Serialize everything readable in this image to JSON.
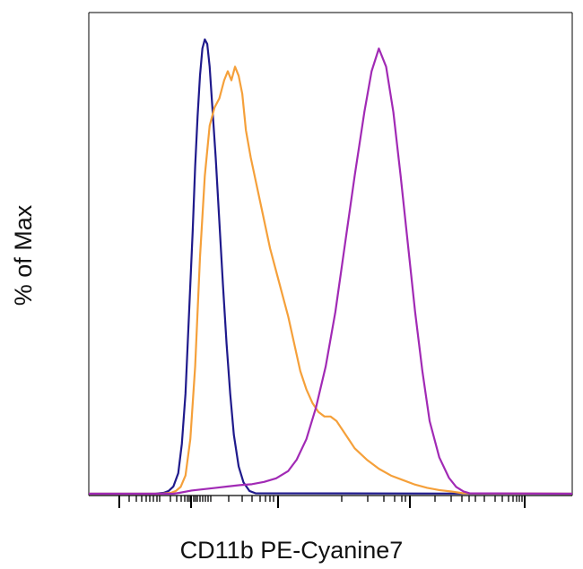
{
  "chart_data": {
    "type": "line",
    "title": "",
    "xlabel": "CD11b PE-Cyanine7",
    "ylabel": "% of Max",
    "xscale": "log",
    "ylim": [
      0,
      100
    ],
    "grid": false,
    "legend": "none",
    "series": [
      {
        "color": "#1f1a8c",
        "x": [
          0.0,
          0.55,
          0.62,
          0.66,
          0.7,
          0.74,
          0.77,
          0.8,
          0.83,
          0.86,
          0.88,
          0.9,
          0.92,
          0.94,
          0.96,
          0.98,
          1.0,
          1.02,
          1.05,
          1.08,
          1.11,
          1.14,
          1.17,
          1.2,
          1.24,
          1.28,
          1.33,
          1.38,
          4.0
        ],
        "y": [
          0.0,
          0.0,
          0.2,
          0.6,
          1.6,
          4.5,
          11,
          22,
          40,
          58,
          72,
          83,
          92,
          98,
          100,
          99,
          94,
          86,
          74,
          60,
          46,
          33,
          22,
          13,
          6,
          2.5,
          0.6,
          0.1,
          0.0
        ]
      },
      {
        "color": "#f5a03a",
        "x": [
          0.0,
          0.6,
          0.68,
          0.72,
          0.76,
          0.8,
          0.84,
          0.88,
          0.92,
          0.96,
          1.0,
          1.04,
          1.08,
          1.1,
          1.12,
          1.15,
          1.18,
          1.21,
          1.24,
          1.27,
          1.3,
          1.34,
          1.38,
          1.42,
          1.46,
          1.5,
          1.55,
          1.6,
          1.65,
          1.7,
          1.75,
          1.8,
          1.85,
          1.9,
          1.95,
          2.0,
          2.05,
          2.1,
          2.15,
          2.2,
          2.3,
          2.4,
          2.5,
          2.6,
          2.7,
          2.8,
          2.9,
          3.0,
          3.05,
          3.1,
          4.0
        ],
        "y": [
          0.0,
          0.0,
          0.2,
          0.6,
          1.5,
          4.0,
          12,
          28,
          52,
          70,
          81,
          85,
          87,
          89,
          91,
          93,
          91,
          94,
          92,
          88,
          80,
          74,
          69,
          64,
          59,
          54,
          49,
          44,
          39,
          33,
          27,
          23,
          20,
          18,
          17,
          17,
          16,
          14,
          12,
          10,
          7.5,
          5.5,
          4.0,
          3.0,
          2.0,
          1.3,
          0.8,
          0.5,
          0.3,
          0.1,
          0.0
        ]
      },
      {
        "color": "#a12ab5",
        "x": [
          0.0,
          0.7,
          0.75,
          0.85,
          0.95,
          1.05,
          1.15,
          1.25,
          1.35,
          1.45,
          1.55,
          1.65,
          1.72,
          1.8,
          1.88,
          1.96,
          2.04,
          2.12,
          2.2,
          2.28,
          2.34,
          2.4,
          2.46,
          2.52,
          2.58,
          2.64,
          2.7,
          2.76,
          2.82,
          2.9,
          2.98,
          3.04,
          3.1,
          3.15,
          4.0
        ],
        "y": [
          0.0,
          0.0,
          0.2,
          0.7,
          1.0,
          1.3,
          1.6,
          1.9,
          2.1,
          2.6,
          3.4,
          5.0,
          7.5,
          12,
          19,
          28,
          40,
          55,
          70,
          84,
          93,
          98,
          94,
          84,
          70,
          55,
          40,
          27,
          16,
          8,
          3.5,
          1.5,
          0.5,
          0.1,
          0.0
        ]
      }
    ]
  }
}
